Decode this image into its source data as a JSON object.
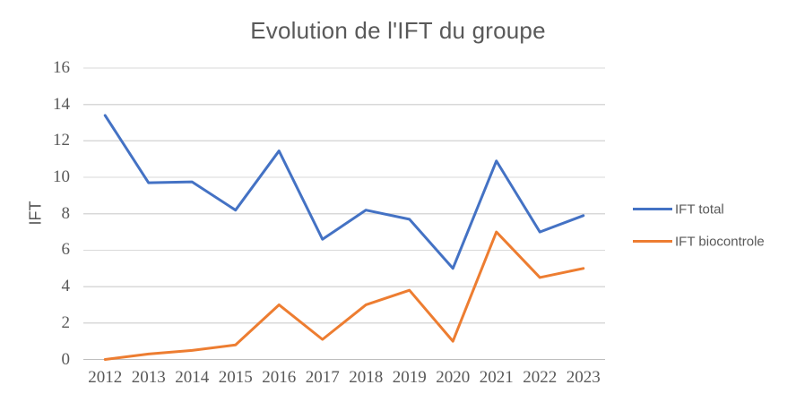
{
  "title": "Evolution de l'IFT du groupe",
  "y_axis": {
    "label": "IFT",
    "ticks": [
      16,
      14,
      12,
      10,
      8,
      6,
      4,
      2,
      0
    ]
  },
  "x_axis": {
    "categories": [
      "2012",
      "2013",
      "2014",
      "2015",
      "2016",
      "2017",
      "2018",
      "2019",
      "2020",
      "2021",
      "2022",
      "2023"
    ]
  },
  "legend": {
    "position": "right",
    "items": [
      "IFT total",
      "IFT biocontrole"
    ]
  },
  "colors": {
    "ift_total": "#4472C4",
    "ift_biocontrole": "#ED7D31",
    "gridline": "#D9D9D9",
    "axis_line": "#BFBFBF",
    "text": "#595959",
    "background": "#FFFFFF"
  },
  "chart_data": {
    "type": "line",
    "title": "Evolution de l'IFT du groupe",
    "xlabel": "",
    "ylabel": "IFT",
    "categories": [
      2012,
      2013,
      2014,
      2015,
      2016,
      2017,
      2018,
      2019,
      2020,
      2021,
      2022,
      2023
    ],
    "series": [
      {
        "name": "IFT total",
        "color": "#4472C4",
        "values": [
          13.4,
          9.7,
          9.75,
          8.2,
          11.45,
          6.6,
          8.2,
          7.7,
          5.0,
          10.9,
          7.0,
          7.9
        ]
      },
      {
        "name": "IFT biocontrole",
        "color": "#ED7D31",
        "values": [
          0.0,
          0.3,
          0.5,
          0.8,
          3.0,
          1.1,
          3.0,
          3.8,
          1.0,
          7.0,
          4.5,
          5.0
        ]
      }
    ],
    "ylim": [
      0,
      16
    ],
    "ytick_step": 2,
    "grid": true,
    "legend_position": "right"
  }
}
